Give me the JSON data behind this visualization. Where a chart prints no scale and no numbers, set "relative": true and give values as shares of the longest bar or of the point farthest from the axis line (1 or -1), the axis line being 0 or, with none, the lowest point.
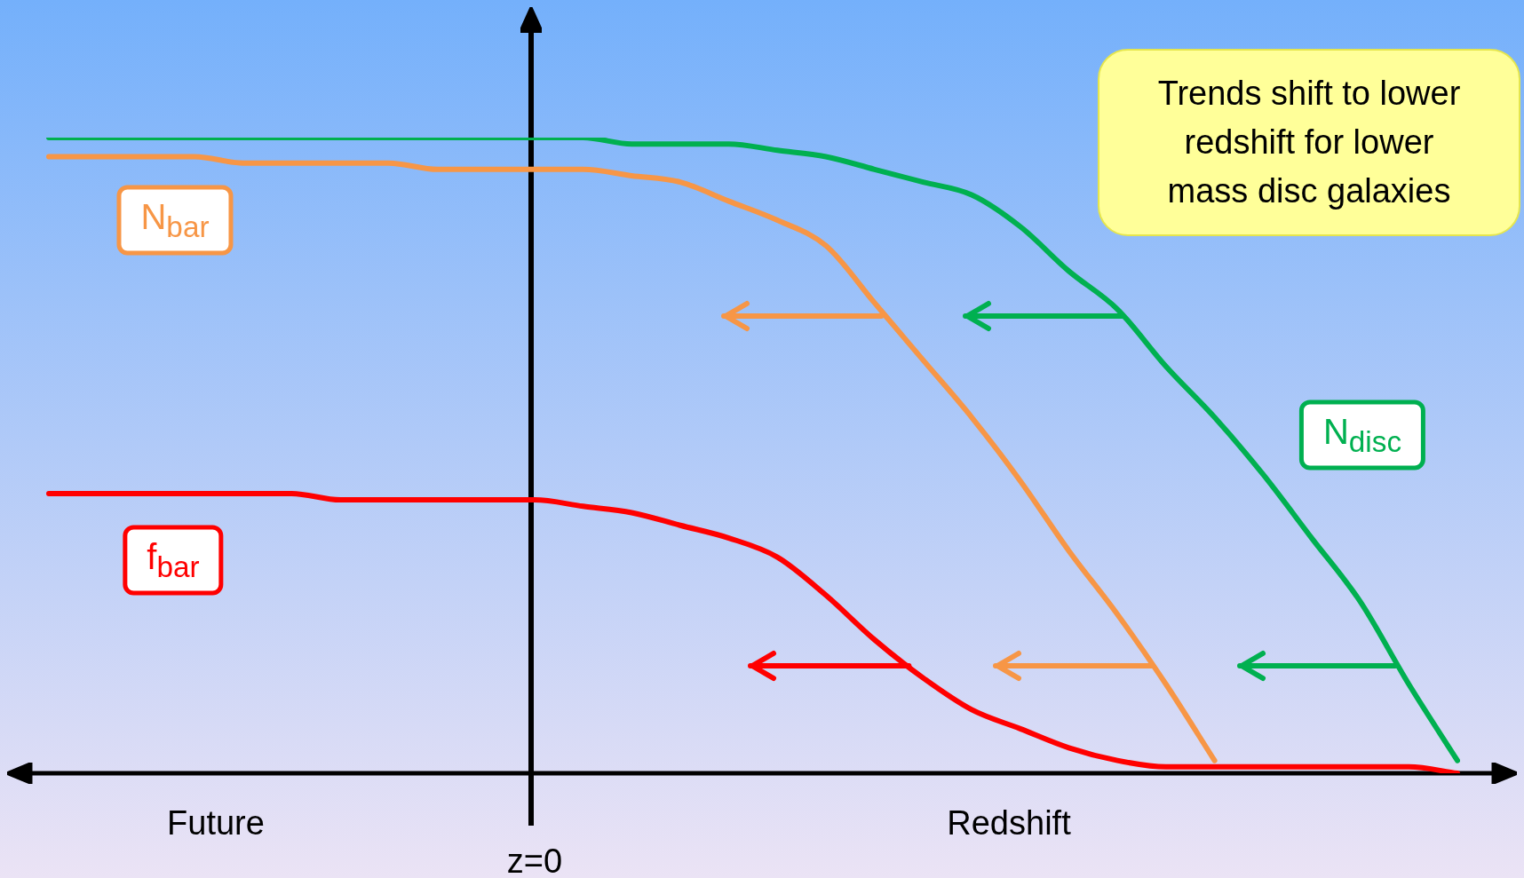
{
  "chart_data": {
    "type": "line",
    "relative": true,
    "legend": false,
    "marker": "none",
    "xlabel": "Redshift",
    "categories": [
      null,
      null,
      null,
      null,
      null,
      null,
      null,
      null,
      null,
      null,
      null,
      null,
      null,
      null,
      null,
      null,
      null,
      null,
      null,
      null,
      null,
      null,
      null,
      null,
      null,
      null,
      null,
      null,
      null,
      null
    ],
    "series": [
      {
        "name": "N$_{disc}$",
        "color": "#00b050",
        "values": [
          1,
          1,
          1,
          1,
          1,
          1,
          1,
          1,
          1,
          1,
          1,
          1,
          0.99,
          0.99,
          0.99,
          0.98,
          0.97,
          0.95,
          0.93,
          0.91,
          0.86,
          0.79,
          0.73,
          0.64,
          0.56,
          0.47,
          0.37,
          0.27,
          0.14,
          0.02
        ]
      },
      {
        "name": "N$_{bar}$",
        "color": "#f79646",
        "values": [
          0.97,
          0.97,
          0.97,
          0.97,
          0.96,
          0.96,
          0.96,
          0.96,
          0.95,
          0.95,
          0.95,
          0.95,
          0.94,
          0.93,
          0.9,
          0.87,
          0.83,
          0.74,
          0.65,
          0.56,
          0.46,
          0.35,
          0.25,
          0.14,
          0.02,
          null,
          null,
          null,
          null,
          null
        ]
      },
      {
        "name": "f$_{bar}$",
        "color": "#ff0000",
        "values": [
          0.44,
          0.44,
          0.44,
          0.44,
          0.44,
          0.44,
          0.43,
          0.43,
          0.43,
          0.43,
          0.43,
          0.42,
          0.41,
          0.39,
          0.37,
          0.34,
          0.28,
          0.21,
          0.15,
          0.1,
          0.07,
          0.04,
          0.02,
          0.01,
          0.01,
          0.01,
          0.01,
          0.01,
          0.01,
          0
        ]
      }
    ],
    "annotations": [
      "Trends shift to lower redshift for lower mass disc galaxies",
      "Future",
      "z=0"
    ]
  }
}
